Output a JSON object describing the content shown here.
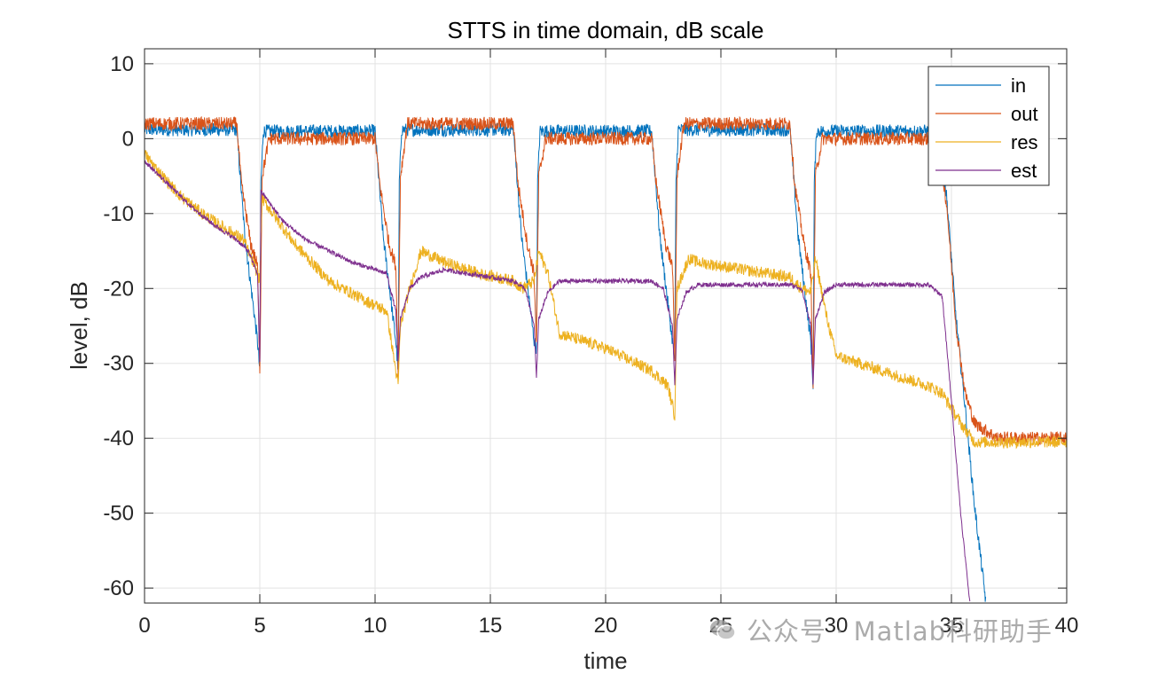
{
  "chart_data": {
    "type": "line",
    "title": "STTS in time domain, dB scale",
    "xlabel": "time",
    "ylabel": "level, dB",
    "xlim": [
      0,
      40
    ],
    "ylim": [
      -62,
      12
    ],
    "xticks": [
      0,
      5,
      10,
      15,
      20,
      25,
      30,
      35,
      40
    ],
    "yticks": [
      10,
      0,
      -10,
      -20,
      -30,
      -40,
      -50,
      -60
    ],
    "xtick_labels": [
      "0",
      "5",
      "10",
      "15",
      "20",
      "25",
      "30",
      "35",
      "40"
    ],
    "ytick_labels": [
      "10",
      "0",
      "-10",
      "-20",
      "-30",
      "-40",
      "-50",
      "-60"
    ],
    "grid": true,
    "legend_position": "top-right",
    "series": [
      {
        "name": "in",
        "color": "#0072BD",
        "noise": 0.9,
        "x": [
          0,
          4.0,
          4.1,
          4.35,
          4.9,
          5.0,
          5.05,
          5.15,
          10.0,
          10.1,
          10.35,
          10.9,
          11.0,
          11.05,
          11.15,
          16.0,
          16.1,
          16.35,
          16.9,
          17.0,
          17.05,
          17.15,
          22.0,
          22.1,
          22.35,
          22.9,
          23.0,
          23.05,
          23.15,
          28.0,
          28.1,
          28.35,
          28.9,
          29.0,
          29.05,
          29.15,
          34.4,
          34.8,
          35.2,
          35.6,
          36.0,
          36.5
        ],
        "y": [
          1.2,
          1.2,
          -3,
          -13,
          -27,
          -31,
          -6,
          1.0,
          1.0,
          -3,
          -13,
          -27,
          -31,
          -6,
          1.2,
          1.2,
          -3,
          -13,
          -27,
          -28,
          -6,
          1.0,
          1.0,
          -3,
          -13,
          -27,
          -30,
          -6,
          1.2,
          1.2,
          -3,
          -13,
          -27,
          -33,
          -6,
          1.0,
          1.0,
          -8,
          -24,
          -36,
          -49,
          -62
        ]
      },
      {
        "name": "out",
        "color": "#D95319",
        "noise": 0.9,
        "x": [
          0,
          4.0,
          4.2,
          4.6,
          4.9,
          5.0,
          5.1,
          5.4,
          10.0,
          10.2,
          10.6,
          10.9,
          11.0,
          11.1,
          11.4,
          16.0,
          16.2,
          16.6,
          16.9,
          17.0,
          17.1,
          17.4,
          22.0,
          22.2,
          22.6,
          22.9,
          23.0,
          23.1,
          23.4,
          28.0,
          28.2,
          28.6,
          28.9,
          29.0,
          29.1,
          29.4,
          34.4,
          34.8,
          35.2,
          35.6,
          36.0,
          37.0,
          40.0
        ],
        "y": [
          2.0,
          2.0,
          -6,
          -14,
          -17,
          -31,
          -5,
          0.0,
          0.0,
          -6,
          -14,
          -17,
          -31,
          -5,
          2.0,
          2.0,
          -6,
          -14,
          -18,
          -28,
          -5,
          0.0,
          0.0,
          -6,
          -14,
          -17,
          -30,
          -5,
          2.0,
          2.0,
          -6,
          -14,
          -18,
          -33,
          -5,
          0.0,
          0.0,
          -9,
          -25,
          -34,
          -38,
          -40,
          -40
        ]
      },
      {
        "name": "res",
        "color": "#EDB120",
        "noise": 0.8,
        "x": [
          0,
          0.5,
          1.5,
          2.5,
          3.5,
          4.3,
          4.9,
          5.0,
          5.1,
          6.5,
          8.0,
          9.5,
          10.5,
          11.0,
          11.1,
          11.5,
          12.0,
          13.0,
          14.5,
          16.0,
          16.4,
          16.9,
          17.1,
          17.5,
          18.0,
          20.0,
          22.0,
          22.7,
          23.0,
          23.1,
          23.6,
          24.0,
          26.0,
          28.0,
          28.5,
          28.9,
          29.1,
          29.6,
          30.0,
          32.0,
          34.0,
          34.6,
          35.0,
          35.4,
          36.0,
          37.0,
          40.0
        ],
        "y": [
          -2,
          -4,
          -7.5,
          -10,
          -12,
          -13.5,
          -18,
          -19,
          -8,
          -14,
          -19,
          -21.5,
          -23,
          -33,
          -25,
          -20,
          -15,
          -16.5,
          -18,
          -19,
          -20,
          -19,
          -15,
          -18,
          -26,
          -28,
          -31,
          -33,
          -37,
          -20,
          -16,
          -16.5,
          -17.5,
          -18.5,
          -20,
          -20.5,
          -16,
          -24,
          -29,
          -31,
          -33,
          -34,
          -36,
          -38,
          -40.5,
          -40.5,
          -40.5
        ]
      },
      {
        "name": "est",
        "color": "#7E2F8E",
        "noise": 0.3,
        "x": [
          0,
          1,
          2,
          3,
          4,
          4.5,
          4.9,
          5.0,
          5.05,
          6,
          7,
          8,
          9,
          10,
          10.5,
          10.9,
          11.0,
          11.1,
          11.5,
          12,
          13,
          14,
          15,
          16,
          16.5,
          16.9,
          17.0,
          17.1,
          17.5,
          18,
          22.0,
          22.5,
          22.9,
          23.0,
          23.1,
          23.5,
          24,
          28.0,
          28.5,
          28.9,
          29.0,
          29.1,
          29.5,
          30,
          34.0,
          34.6,
          35.0,
          35.4,
          35.8
        ],
        "y": [
          -3,
          -6,
          -9,
          -11.5,
          -13.5,
          -15,
          -18,
          -30,
          -7,
          -11,
          -13.5,
          -15,
          -16.5,
          -17.5,
          -18,
          -23,
          -30,
          -24,
          -20,
          -18.5,
          -17.5,
          -18,
          -18.5,
          -19,
          -20,
          -25,
          -32,
          -24,
          -20.5,
          -19,
          -19,
          -20,
          -25,
          -33,
          -24,
          -20.5,
          -19.5,
          -19.5,
          -20,
          -25,
          -33,
          -24,
          -20.5,
          -19.5,
          -19.5,
          -21,
          -35,
          -50,
          -62
        ]
      }
    ]
  },
  "watermark_text": "公众号 · Matlab科研助手"
}
